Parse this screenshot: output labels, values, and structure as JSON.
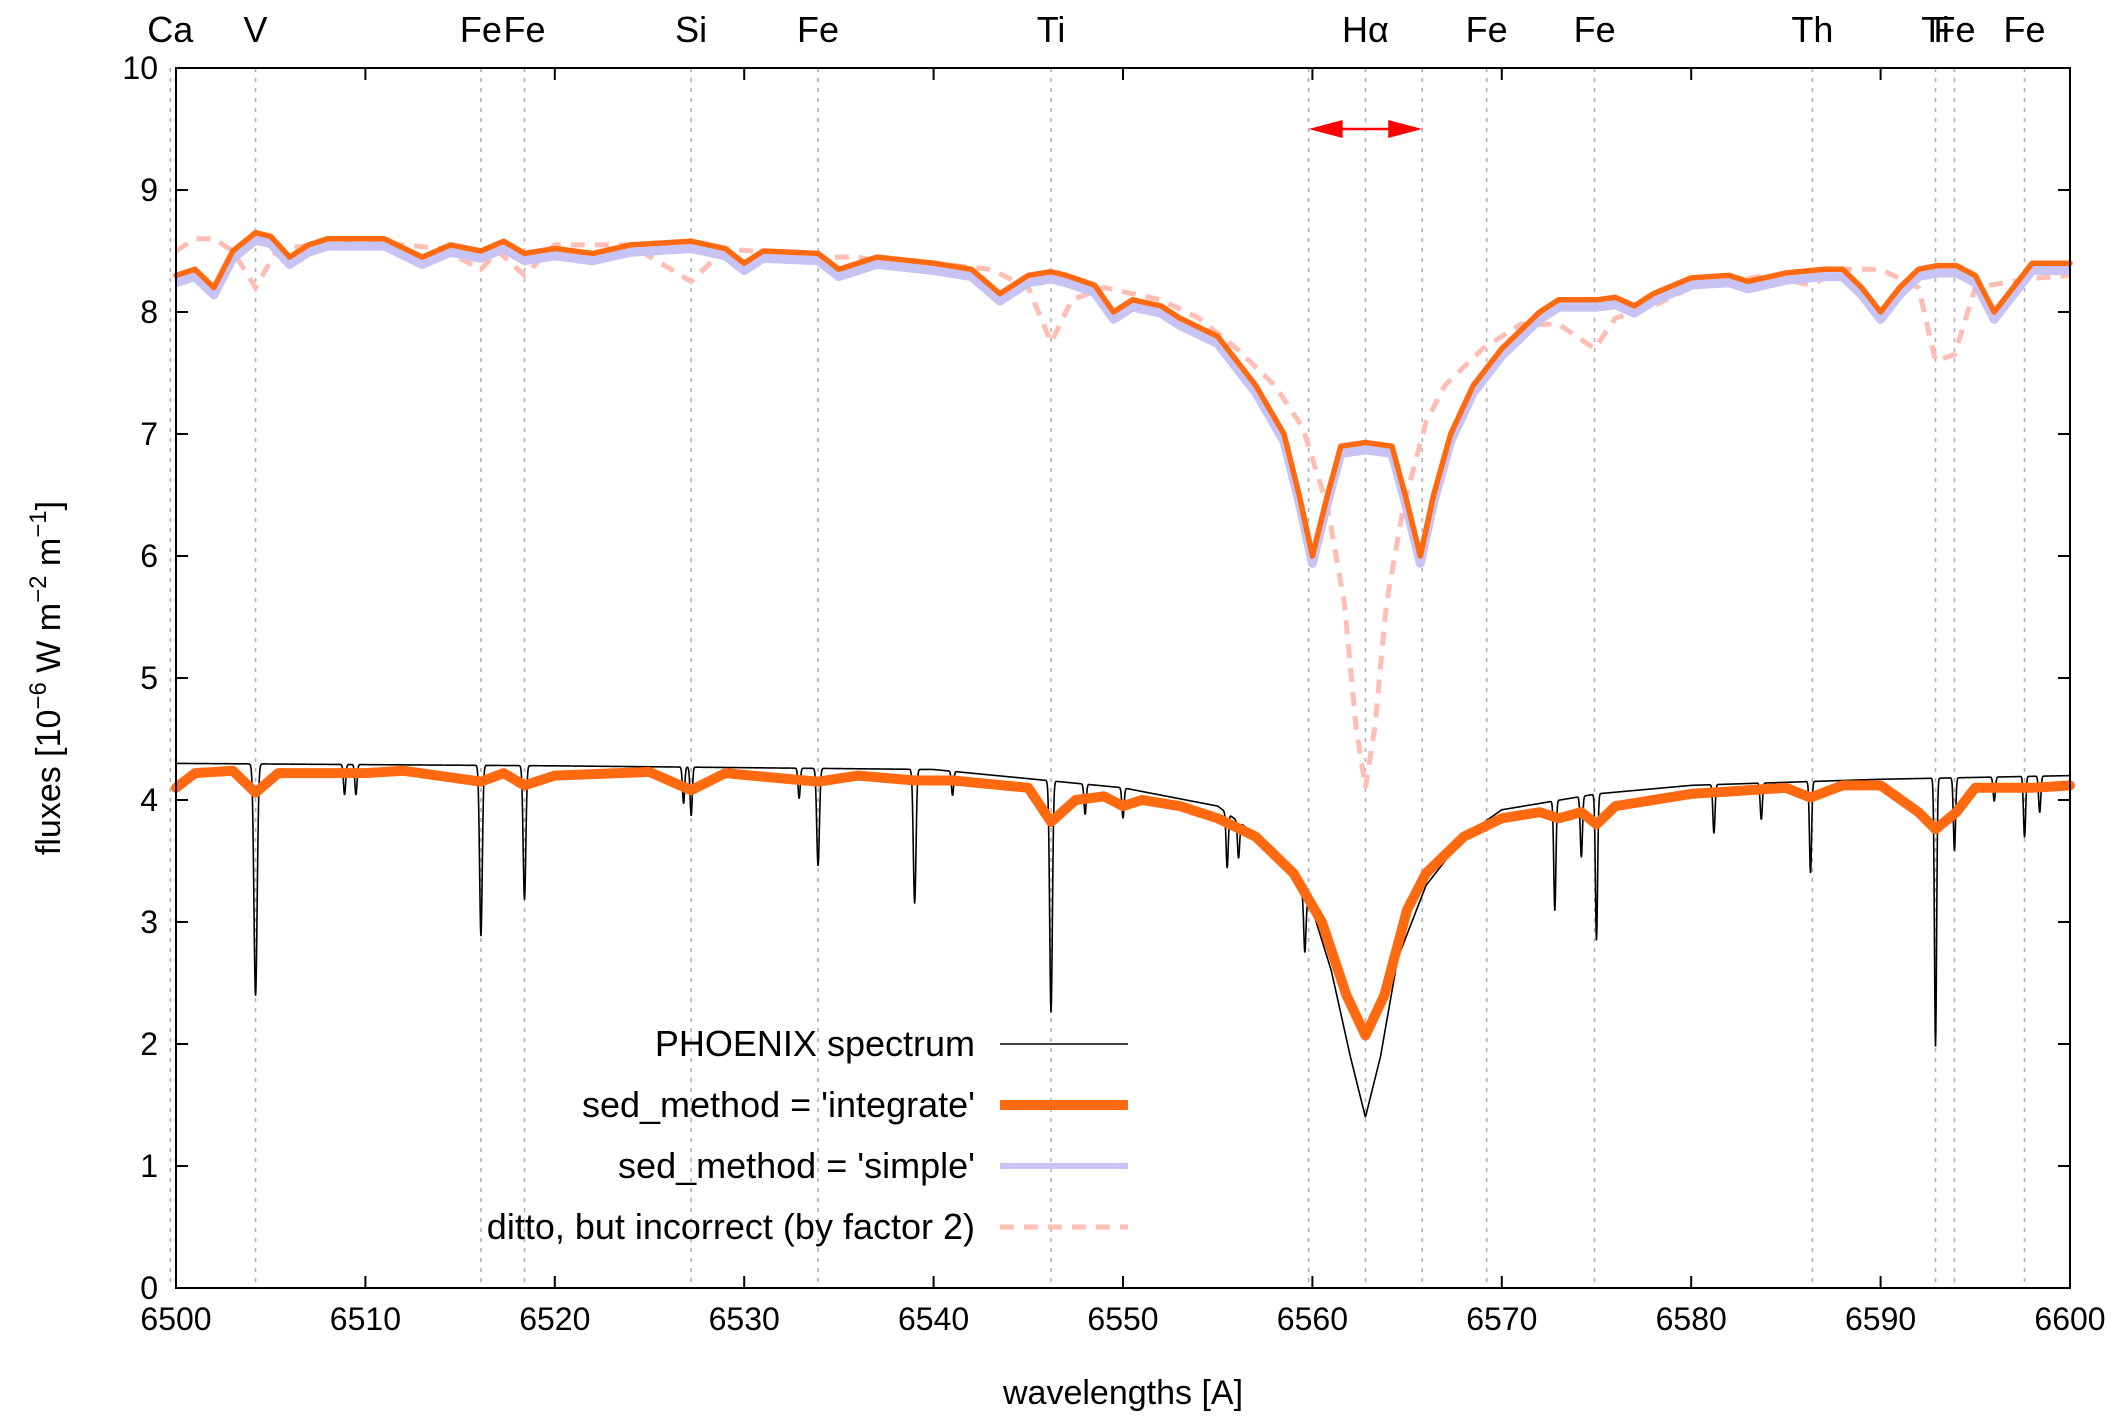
{
  "chart_data": {
    "type": "line",
    "xlabel": "wavelengths [A]",
    "ylabel": {
      "prefix": "fluxes [10",
      "exp1": "−6",
      "mid1": " W m",
      "exp2": "−2",
      "mid2": " m",
      "exp3": "−1",
      "suffix": "]"
    },
    "xlim": [
      6500,
      6600
    ],
    "ylim": [
      0,
      10
    ],
    "x_ticks": [
      6500,
      6510,
      6520,
      6530,
      6540,
      6550,
      6560,
      6570,
      6580,
      6590,
      6600
    ],
    "y_ticks": [
      0,
      1,
      2,
      3,
      4,
      5,
      6,
      7,
      8,
      9,
      10
    ],
    "grid": false,
    "legend_position": "bottom-center",
    "line_markers": [
      {
        "label": "Ca",
        "x": 6499.7
      },
      {
        "label": "V",
        "x": 6504.2
      },
      {
        "label": "Fe",
        "x": 6516.1
      },
      {
        "label": "Fe",
        "x": 6518.4
      },
      {
        "label": "Si",
        "x": 6527.2
      },
      {
        "label": "Fe",
        "x": 6533.9
      },
      {
        "label": "Ti",
        "x": 6546.2
      },
      {
        "label": "",
        "x": 6559.8
      },
      {
        "label": "Hα",
        "x": 6562.8
      },
      {
        "label": "",
        "x": 6565.8
      },
      {
        "label": "Fe",
        "x": 6569.2
      },
      {
        "label": "Fe",
        "x": 6574.9
      },
      {
        "label": "Th",
        "x": 6586.4
      },
      {
        "label": "Ti",
        "x": 6592.9
      },
      {
        "label": "Fe",
        "x": 6593.9
      },
      {
        "label": "Fe",
        "x": 6597.6
      }
    ],
    "arrow": {
      "from": 6559.8,
      "to": 6565.8,
      "y": 9.5
    },
    "series": [
      {
        "name": "PHOENIX spectrum",
        "color": "#000000",
        "style": "thin",
        "continuum": [
          [
            6500,
            4.3
          ],
          [
            6520,
            4.28
          ],
          [
            6540,
            4.25
          ],
          [
            6550,
            4.1
          ],
          [
            6555,
            3.95
          ],
          [
            6558,
            3.6
          ],
          [
            6560,
            3.1
          ],
          [
            6561,
            2.6
          ],
          [
            6562,
            1.9
          ],
          [
            6562.8,
            1.4
          ],
          [
            6563.6,
            1.9
          ],
          [
            6564.5,
            2.7
          ],
          [
            6566,
            3.3
          ],
          [
            6568,
            3.7
          ],
          [
            6570,
            3.92
          ],
          [
            6575,
            4.05
          ],
          [
            6580,
            4.12
          ],
          [
            6590,
            4.17
          ],
          [
            6600,
            4.2
          ]
        ],
        "lines": [
          [
            6504.2,
            1.9,
            0.12
          ],
          [
            6508.9,
            0.25,
            0.08
          ],
          [
            6509.5,
            0.25,
            0.08
          ],
          [
            6516.1,
            1.4,
            0.1
          ],
          [
            6518.4,
            1.1,
            0.1
          ],
          [
            6526.8,
            0.3,
            0.08
          ],
          [
            6527.2,
            0.4,
            0.08
          ],
          [
            6532.9,
            0.25,
            0.08
          ],
          [
            6533.9,
            0.8,
            0.1
          ],
          [
            6539.0,
            1.1,
            0.1
          ],
          [
            6541.0,
            0.2,
            0.08
          ],
          [
            6546.2,
            1.9,
            0.1
          ],
          [
            6548.0,
            0.25,
            0.08
          ],
          [
            6550.0,
            0.25,
            0.08
          ],
          [
            6555.5,
            0.45,
            0.08
          ],
          [
            6556.1,
            0.3,
            0.08
          ],
          [
            6559.6,
            0.45,
            0.08
          ],
          [
            6572.8,
            0.9,
            0.08
          ],
          [
            6574.2,
            0.5,
            0.08
          ],
          [
            6575.0,
            1.2,
            0.08
          ],
          [
            6581.2,
            0.4,
            0.08
          ],
          [
            6583.7,
            0.3,
            0.08
          ],
          [
            6586.3,
            0.75,
            0.08
          ],
          [
            6592.9,
            2.2,
            0.08
          ],
          [
            6593.9,
            0.6,
            0.08
          ],
          [
            6596.0,
            0.2,
            0.08
          ],
          [
            6597.6,
            0.5,
            0.08
          ],
          [
            6598.4,
            0.3,
            0.08
          ]
        ]
      },
      {
        "name": "sed_method = 'integrate'",
        "color": "#ff6a10",
        "style": "thick",
        "lower_curve": [
          [
            6500,
            4.1
          ],
          [
            6501,
            4.22
          ],
          [
            6503,
            4.24
          ],
          [
            6504.2,
            4.06
          ],
          [
            6505.4,
            4.22
          ],
          [
            6510,
            4.22
          ],
          [
            6512,
            4.24
          ],
          [
            6516.1,
            4.15
          ],
          [
            6517.3,
            4.22
          ],
          [
            6518.4,
            4.12
          ],
          [
            6520,
            4.2
          ],
          [
            6525,
            4.23
          ],
          [
            6527.2,
            4.08
          ],
          [
            6529,
            4.22
          ],
          [
            6533.9,
            4.15
          ],
          [
            6536,
            4.2
          ],
          [
            6539,
            4.16
          ],
          [
            6541,
            4.16
          ],
          [
            6545,
            4.1
          ],
          [
            6546.2,
            3.82
          ],
          [
            6547.5,
            4.0
          ],
          [
            6549,
            4.03
          ],
          [
            6550,
            3.95
          ],
          [
            6551,
            4.0
          ],
          [
            6553,
            3.95
          ],
          [
            6555,
            3.85
          ],
          [
            6557,
            3.7
          ],
          [
            6559,
            3.4
          ],
          [
            6560.5,
            3.0
          ],
          [
            6561.8,
            2.4
          ],
          [
            6562.8,
            2.07
          ],
          [
            6563.8,
            2.4
          ],
          [
            6565,
            3.1
          ],
          [
            6566,
            3.4
          ],
          [
            6568,
            3.7
          ],
          [
            6570,
            3.85
          ],
          [
            6572,
            3.9
          ],
          [
            6573,
            3.85
          ],
          [
            6574.2,
            3.9
          ],
          [
            6575,
            3.8
          ],
          [
            6576,
            3.95
          ],
          [
            6580,
            4.05
          ],
          [
            6585,
            4.1
          ],
          [
            6586.3,
            4.02
          ],
          [
            6588,
            4.12
          ],
          [
            6590,
            4.12
          ],
          [
            6592,
            3.9
          ],
          [
            6592.9,
            3.76
          ],
          [
            6594,
            3.9
          ],
          [
            6595,
            4.1
          ],
          [
            6598,
            4.1
          ],
          [
            6600,
            4.12
          ]
        ],
        "upper_curve": [
          [
            6500,
            8.3
          ],
          [
            6501,
            8.35
          ],
          [
            6502,
            8.2
          ],
          [
            6503,
            8.5
          ],
          [
            6504.2,
            8.65
          ],
          [
            6505,
            8.62
          ],
          [
            6506,
            8.45
          ],
          [
            6507,
            8.55
          ],
          [
            6508,
            8.6
          ],
          [
            6511,
            8.6
          ],
          [
            6513,
            8.45
          ],
          [
            6514.5,
            8.55
          ],
          [
            6516.1,
            8.5
          ],
          [
            6517.3,
            8.58
          ],
          [
            6518.4,
            8.48
          ],
          [
            6520,
            8.52
          ],
          [
            6522,
            8.48
          ],
          [
            6524,
            8.55
          ],
          [
            6527.2,
            8.58
          ],
          [
            6529,
            8.52
          ],
          [
            6530,
            8.4
          ],
          [
            6531,
            8.5
          ],
          [
            6533.9,
            8.48
          ],
          [
            6535,
            8.35
          ],
          [
            6537,
            8.45
          ],
          [
            6540,
            8.4
          ],
          [
            6542,
            8.35
          ],
          [
            6543.5,
            8.15
          ],
          [
            6545,
            8.3
          ],
          [
            6546.2,
            8.33
          ],
          [
            6547,
            8.3
          ],
          [
            6548.5,
            8.22
          ],
          [
            6549.5,
            8.0
          ],
          [
            6550.5,
            8.1
          ],
          [
            6552,
            8.05
          ],
          [
            6553,
            7.95
          ],
          [
            6555,
            7.8
          ],
          [
            6556,
            7.6
          ],
          [
            6557,
            7.4
          ],
          [
            6558.5,
            7.0
          ],
          [
            6559.3,
            6.5
          ],
          [
            6560,
            6.0
          ],
          [
            6560.8,
            6.5
          ],
          [
            6561.5,
            6.9
          ],
          [
            6562.8,
            6.93
          ],
          [
            6564.2,
            6.9
          ],
          [
            6564.9,
            6.5
          ],
          [
            6565.7,
            6.0
          ],
          [
            6566.4,
            6.5
          ],
          [
            6567.3,
            7.0
          ],
          [
            6568.5,
            7.4
          ],
          [
            6570,
            7.7
          ],
          [
            6572,
            8.0
          ],
          [
            6573,
            8.1
          ],
          [
            6575,
            8.1
          ],
          [
            6576,
            8.12
          ],
          [
            6577,
            8.05
          ],
          [
            6578,
            8.15
          ],
          [
            6580,
            8.28
          ],
          [
            6582,
            8.3
          ],
          [
            6583,
            8.25
          ],
          [
            6585,
            8.32
          ],
          [
            6587,
            8.35
          ],
          [
            6588,
            8.35
          ],
          [
            6589,
            8.2
          ],
          [
            6590,
            8.0
          ],
          [
            6591,
            8.2
          ],
          [
            6592,
            8.35
          ],
          [
            6593,
            8.38
          ],
          [
            6594,
            8.38
          ],
          [
            6595,
            8.3
          ],
          [
            6596,
            8.0
          ],
          [
            6597,
            8.2
          ],
          [
            6598,
            8.4
          ],
          [
            6600,
            8.4
          ]
        ]
      },
      {
        "name": "sed_method = 'simple'",
        "color": "#c7c3f4",
        "style": "medium",
        "offset": -0.06
      },
      {
        "name": "ditto, but incorrect (by factor 2)",
        "color": "#ffbdb4",
        "style": "dashed",
        "curve": [
          [
            6500,
            8.5
          ],
          [
            6501,
            8.6
          ],
          [
            6502,
            8.6
          ],
          [
            6503,
            8.5
          ],
          [
            6504.2,
            8.2
          ],
          [
            6505.3,
            8.5
          ],
          [
            6508,
            8.58
          ],
          [
            6512,
            8.55
          ],
          [
            6514,
            8.52
          ],
          [
            6516.1,
            8.35
          ],
          [
            6517,
            8.5
          ],
          [
            6518.4,
            8.3
          ],
          [
            6520,
            8.55
          ],
          [
            6524,
            8.55
          ],
          [
            6527.2,
            8.25
          ],
          [
            6529,
            8.52
          ],
          [
            6533.9,
            8.45
          ],
          [
            6536,
            8.45
          ],
          [
            6539,
            8.35
          ],
          [
            6540,
            8.4
          ],
          [
            6543,
            8.35
          ],
          [
            6545,
            8.2
          ],
          [
            6546.2,
            7.75
          ],
          [
            6547.3,
            8.1
          ],
          [
            6549,
            8.2
          ],
          [
            6552,
            8.1
          ],
          [
            6554,
            7.95
          ],
          [
            6556,
            7.7
          ],
          [
            6558,
            7.4
          ],
          [
            6559.5,
            7.05
          ],
          [
            6560.8,
            6.4
          ],
          [
            6561.7,
            5.6
          ],
          [
            6562.3,
            4.6
          ],
          [
            6562.8,
            4.1
          ],
          [
            6563.3,
            4.6
          ],
          [
            6563.9,
            5.6
          ],
          [
            6564.8,
            6.4
          ],
          [
            6566,
            7.1
          ],
          [
            6567,
            7.4
          ],
          [
            6569,
            7.7
          ],
          [
            6571,
            7.9
          ],
          [
            6573,
            7.9
          ],
          [
            6574.9,
            7.7
          ],
          [
            6576,
            7.95
          ],
          [
            6578,
            8.05
          ],
          [
            6580,
            8.2
          ],
          [
            6584,
            8.3
          ],
          [
            6586.3,
            8.22
          ],
          [
            6588,
            8.35
          ],
          [
            6590,
            8.35
          ],
          [
            6592,
            8.2
          ],
          [
            6592.9,
            7.6
          ],
          [
            6593.9,
            7.65
          ],
          [
            6595,
            8.2
          ],
          [
            6597,
            8.25
          ],
          [
            6598.4,
            8.28
          ],
          [
            6600,
            8.3
          ]
        ]
      }
    ]
  }
}
